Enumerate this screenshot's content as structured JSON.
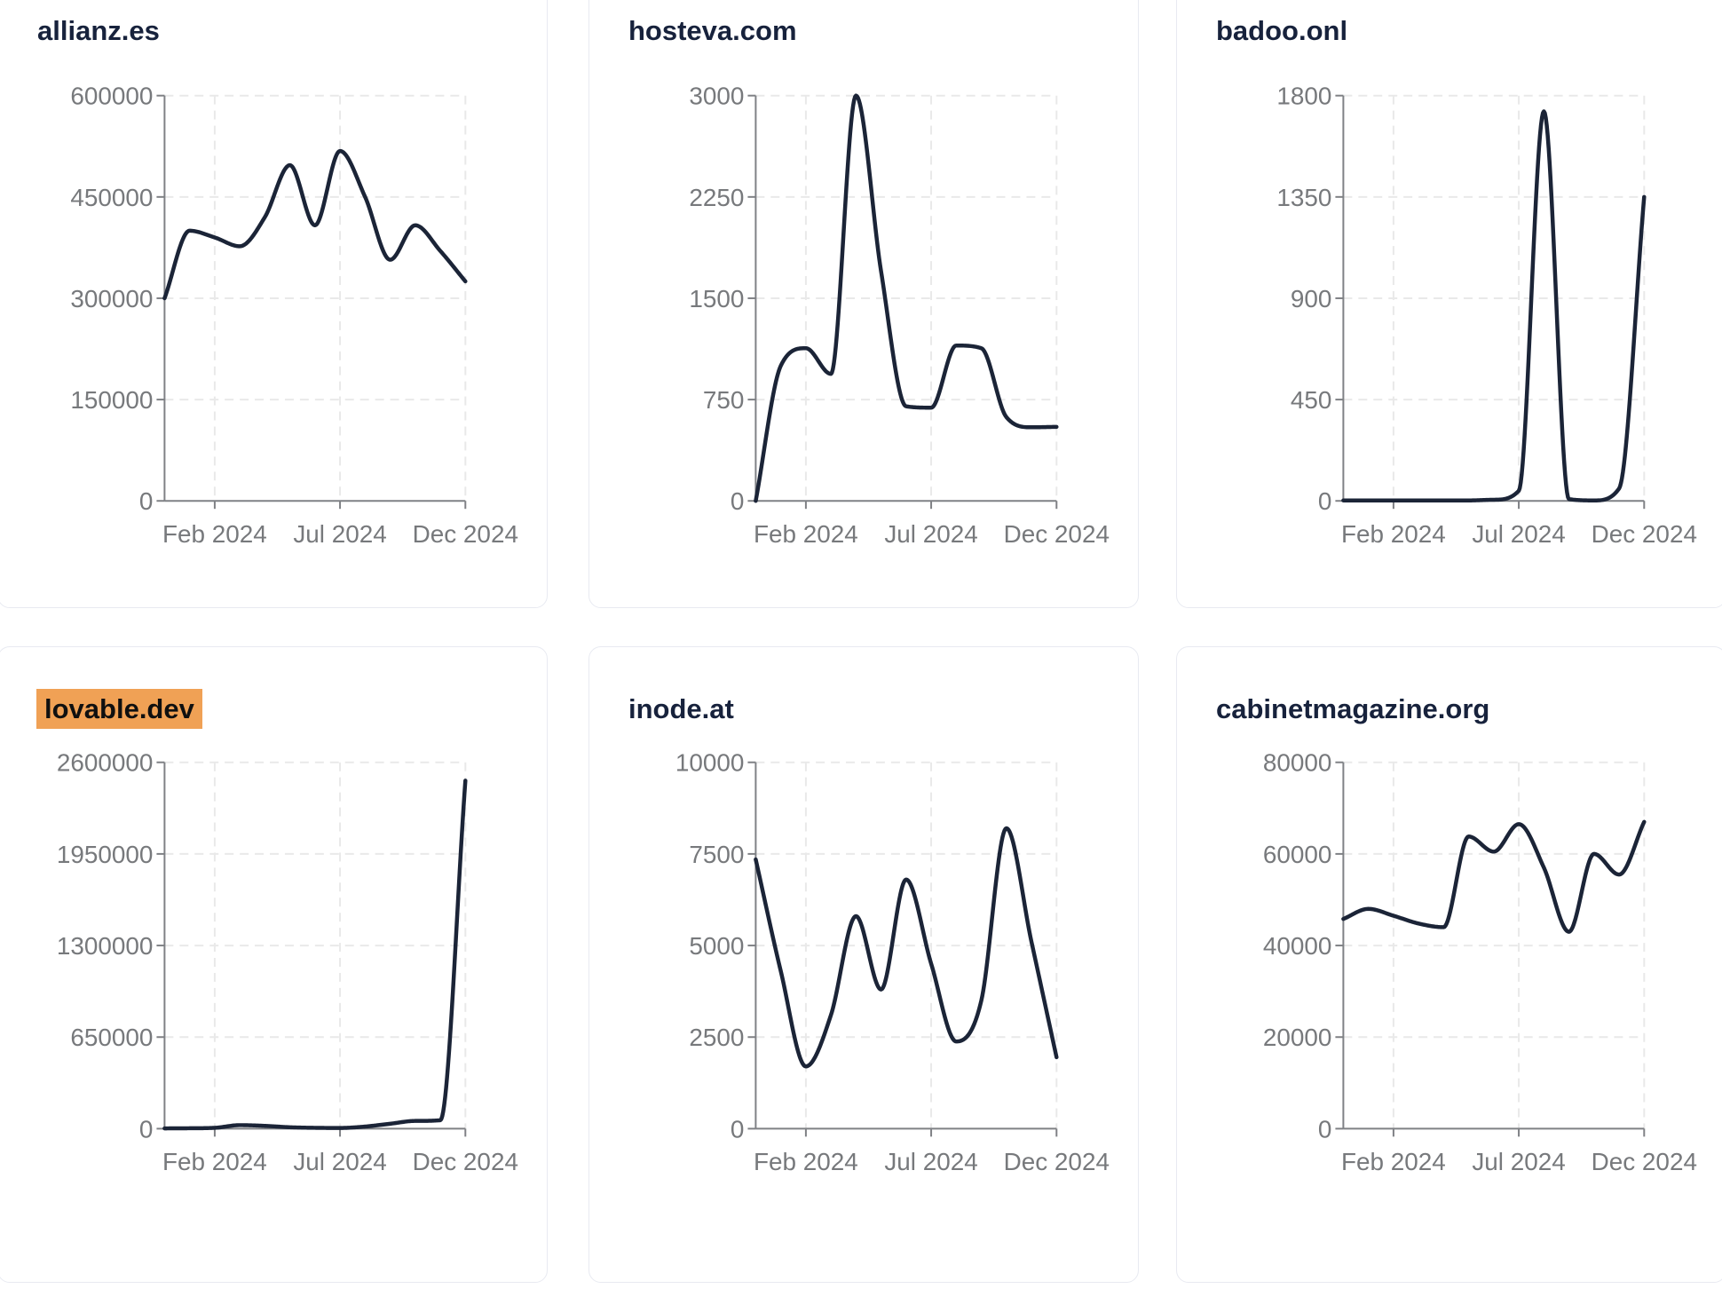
{
  "colors": {
    "line": "#1b2437",
    "title": "#17223c",
    "tick_label": "#77797c",
    "axis": "#7f8185",
    "grid": "#e9e9e9",
    "card_background": "#ffffff",
    "card_border": "#e8eaf1",
    "highlight": "#f0a155",
    "highlight_text": "#101010"
  },
  "chart_common": {
    "x": [
      "Dec 2023",
      "Jan 2024",
      "Feb 2024",
      "Mar 2024",
      "Apr 2024",
      "May 2024",
      "Jun 2024",
      "Jul 2024",
      "Aug 2024",
      "Sep 2024",
      "Oct 2024",
      "Nov 2024",
      "Dec 2024"
    ],
    "x_tick_labels": [
      "Feb 2024",
      "Jul 2024",
      "Dec 2024"
    ],
    "x_tick_indices": [
      2,
      7,
      12
    ],
    "grid": "dashed",
    "legend": "none"
  },
  "chart_data": [
    {
      "type": "line",
      "title": "allianz.es",
      "highlight": false,
      "ylim": [
        0,
        600000
      ],
      "y_ticks": [
        0,
        150000,
        300000,
        450000,
        600000
      ],
      "values": [
        300000,
        400000,
        390000,
        377000,
        420000,
        497000,
        408000,
        518000,
        450000,
        357000,
        408000,
        370000,
        325000
      ]
    },
    {
      "type": "line",
      "title": "hosteva.com",
      "highlight": false,
      "ylim": [
        0,
        3000
      ],
      "y_ticks": [
        0,
        750,
        1500,
        2250,
        3000
      ],
      "values": [
        0,
        1000,
        1130,
        940,
        3000,
        1700,
        700,
        690,
        1150,
        1130,
        620,
        545,
        548
      ]
    },
    {
      "type": "line",
      "title": "badoo.onl",
      "highlight": false,
      "ylim": [
        0,
        1800
      ],
      "y_ticks": [
        0,
        450,
        900,
        1350,
        1800
      ],
      "values": [
        2,
        2,
        2,
        2,
        2,
        2,
        5,
        45,
        1730,
        8,
        2,
        55,
        1350
      ]
    },
    {
      "type": "line",
      "title": "lovable.dev",
      "highlight": true,
      "ylim": [
        0,
        2600000
      ],
      "y_ticks": [
        0,
        650000,
        1300000,
        1950000,
        2600000
      ],
      "values": [
        2000,
        3000,
        6000,
        25000,
        20000,
        10000,
        6000,
        5000,
        15000,
        35000,
        55000,
        60000,
        2470000
      ]
    },
    {
      "type": "line",
      "title": "inode.at",
      "highlight": false,
      "ylim": [
        0,
        10000
      ],
      "y_ticks": [
        0,
        2500,
        5000,
        7500,
        10000
      ],
      "values": [
        7350,
        4300,
        1700,
        3100,
        5800,
        3800,
        6800,
        4500,
        2380,
        3500,
        8200,
        5100,
        1950
      ]
    },
    {
      "type": "line",
      "title": "cabinetmagazine.org",
      "highlight": false,
      "ylim": [
        0,
        80000
      ],
      "y_ticks": [
        0,
        20000,
        40000,
        60000,
        80000
      ],
      "values": [
        45800,
        48000,
        46500,
        44800,
        44000,
        63800,
        60500,
        66500,
        57000,
        43000,
        60000,
        55500,
        67000
      ]
    }
  ]
}
